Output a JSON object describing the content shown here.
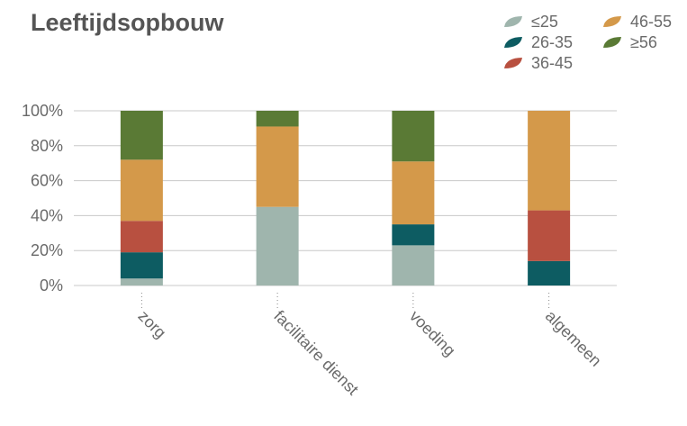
{
  "chart_data": {
    "type": "bar",
    "stacked": true,
    "title": "Leeftijdsopbouw",
    "xlabel": "",
    "ylabel": "",
    "ylim": [
      0,
      100
    ],
    "y_unit": "%",
    "y_ticks": [
      "0%",
      "20%",
      "40%",
      "60%",
      "80%",
      "100%"
    ],
    "grid": true,
    "legend_position": "top-right",
    "categories": [
      "zorg",
      "facilitaire dienst",
      "voeding",
      "algemeen"
    ],
    "series": [
      {
        "name": "≤25",
        "color": "#9fb5ad",
        "values": [
          4,
          45,
          23,
          0
        ]
      },
      {
        "name": "26-35",
        "color": "#0d5c62",
        "values": [
          15,
          0,
          12,
          14
        ]
      },
      {
        "name": "36-45",
        "color": "#b85040",
        "values": [
          18,
          0,
          0,
          29
        ]
      },
      {
        "name": "46-55",
        "color": "#d4994a",
        "values": [
          35,
          46,
          36,
          57
        ]
      },
      {
        "name": "≥56",
        "color": "#5a7a35",
        "values": [
          28,
          9,
          29,
          0
        ]
      }
    ]
  }
}
